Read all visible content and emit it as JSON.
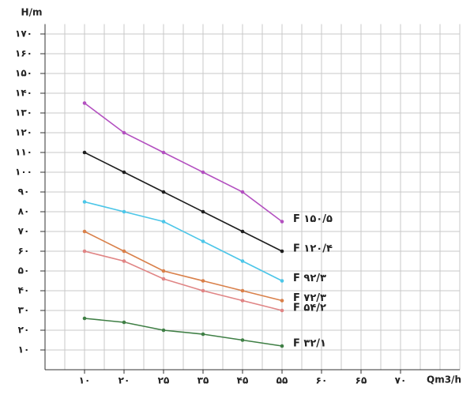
{
  "chart_data": {
    "type": "line",
    "y_label": "H/m",
    "x_label": "Qm3/h",
    "categories": [
      "۱۰",
      "۲۰",
      "۲۵",
      "۳۵",
      "۴۵",
      "۵۵",
      "۶۰",
      "۶۵",
      "۷۰"
    ],
    "ylim": [
      0,
      175
    ],
    "yticks": [
      {
        "value": 10,
        "label": "۱۰"
      },
      {
        "value": 20,
        "label": "۲۰"
      },
      {
        "value": 30,
        "label": "۳۰"
      },
      {
        "value": 40,
        "label": "۴۰"
      },
      {
        "value": 50,
        "label": "۵۰"
      },
      {
        "value": 60,
        "label": "۶۰"
      },
      {
        "value": 70,
        "label": "۷۰"
      },
      {
        "value": 80,
        "label": "۸۰"
      },
      {
        "value": 90,
        "label": "۹۰"
      },
      {
        "value": 100,
        "label": "۱۰۰"
      },
      {
        "value": 110,
        "label": "۱۱۰"
      },
      {
        "value": 120,
        "label": "۱۲۰"
      },
      {
        "value": 130,
        "label": "۱۳۰"
      },
      {
        "value": 140,
        "label": "۱۴۰"
      },
      {
        "value": 150,
        "label": "۱۵۰"
      },
      {
        "value": 160,
        "label": "۱۶۰"
      },
      {
        "value": 170,
        "label": "۱۷۰"
      }
    ],
    "grid": true,
    "series": [
      {
        "name": "F ۱۵۰/۵",
        "color": "#b350c0",
        "values": [
          135,
          120,
          110,
          100,
          90,
          75,
          null,
          null,
          null
        ]
      },
      {
        "name": "F ۱۲۰/۴",
        "color": "#1e1e1e",
        "values": [
          110,
          100,
          90,
          80,
          70,
          60,
          null,
          null,
          null
        ]
      },
      {
        "name": "F ۹۲/۳",
        "color": "#4cc6e8",
        "values": [
          85,
          80,
          75,
          65,
          55,
          45,
          null,
          null,
          null
        ]
      },
      {
        "name": "F ۷۲/۳",
        "color": "#d9804a",
        "values": [
          70,
          60,
          50,
          45,
          40,
          35,
          null,
          null,
          null
        ]
      },
      {
        "name": "F ۵۴/۲",
        "color": "#e08585",
        "values": [
          60,
          55,
          46,
          40,
          35,
          30,
          null,
          null,
          null
        ]
      },
      {
        "name": "F ۳۲/۱",
        "color": "#3f7f45",
        "values": [
          26,
          24,
          20,
          18,
          15,
          12,
          null,
          null,
          null
        ]
      }
    ]
  }
}
